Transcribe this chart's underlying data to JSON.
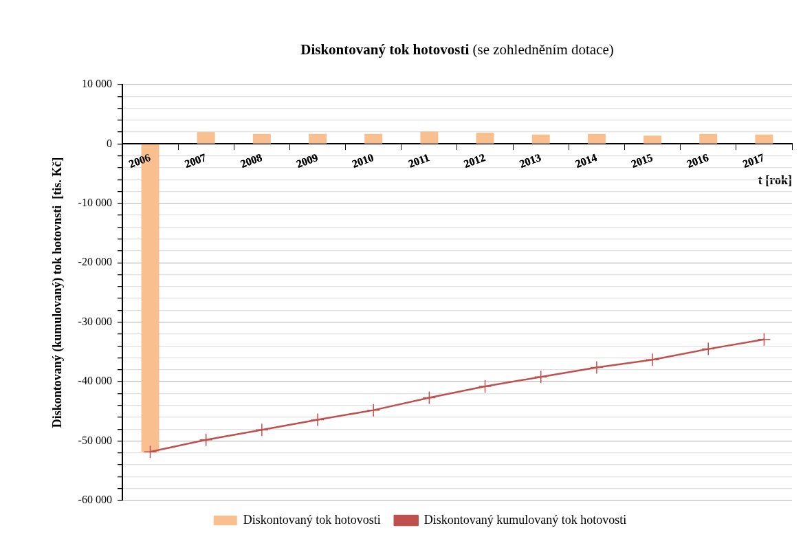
{
  "chart_data": {
    "type": "bar",
    "title": "Diskontovaný tok hotovosti",
    "subtitle": "(se zohledněním dotace)",
    "xlabel": "t [rok]",
    "ylabel": "Diskontovaný (kumulovaný) tok hotovnsti  [tis. Kč]",
    "categories": [
      "2006",
      "2007",
      "2008",
      "2009",
      "2010",
      "2011",
      "2012",
      "2013",
      "2014",
      "2015",
      "2016",
      "2017"
    ],
    "series": [
      {
        "name": "Diskontovaný tok hotovosti",
        "color": "#f9bf8f",
        "values": [
          -51800,
          2000,
          1700,
          1700,
          1700,
          2100,
          1900,
          1600,
          1700,
          1400,
          1700,
          1600
        ]
      },
      {
        "name": "Diskontovaný kumulovaný tok hotovosti",
        "type": "line",
        "color": "#c0504d",
        "marker": "cross",
        "values": [
          -51800,
          -49800,
          -48100,
          -46400,
          -44800,
          -42700,
          -40800,
          -39200,
          -37600,
          -36300,
          -34500,
          -32900
        ]
      }
    ],
    "ylim": [
      -60000,
      10000
    ],
    "yticks": [
      {
        "value": -60000,
        "label": "-60 000"
      },
      {
        "value": -58000,
        "label": null
      },
      {
        "value": -56000,
        "label": null
      },
      {
        "value": -54000,
        "label": null
      },
      {
        "value": -52000,
        "label": null
      },
      {
        "value": -50000,
        "label": "-50 000"
      },
      {
        "value": -48000,
        "label": null
      },
      {
        "value": -46000,
        "label": null
      },
      {
        "value": -44000,
        "label": null
      },
      {
        "value": -42000,
        "label": null
      },
      {
        "value": -40000,
        "label": "-40 000"
      },
      {
        "value": -38000,
        "label": null
      },
      {
        "value": -36000,
        "label": null
      },
      {
        "value": -34000,
        "label": null
      },
      {
        "value": -32000,
        "label": null
      },
      {
        "value": -30000,
        "label": "-30 000"
      },
      {
        "value": -28000,
        "label": null
      },
      {
        "value": -26000,
        "label": null
      },
      {
        "value": -24000,
        "label": null
      },
      {
        "value": -22000,
        "label": null
      },
      {
        "value": -20000,
        "label": "-20 000"
      },
      {
        "value": -18000,
        "label": null
      },
      {
        "value": -16000,
        "label": null
      },
      {
        "value": -14000,
        "label": null
      },
      {
        "value": -12000,
        "label": null
      },
      {
        "value": -10000,
        "label": "-10 000"
      },
      {
        "value": -8000,
        "label": null
      },
      {
        "value": -6000,
        "label": null
      },
      {
        "value": -4000,
        "label": null
      },
      {
        "value": -2000,
        "label": null
      },
      {
        "value": 0,
        "label": "0"
      },
      {
        "value": 2000,
        "label": null
      },
      {
        "value": 4000,
        "label": null
      },
      {
        "value": 6000,
        "label": null
      },
      {
        "value": 8000,
        "label": null
      },
      {
        "value": 10000,
        "label": "10 000"
      }
    ],
    "grid": "y",
    "legend": "bottom"
  }
}
